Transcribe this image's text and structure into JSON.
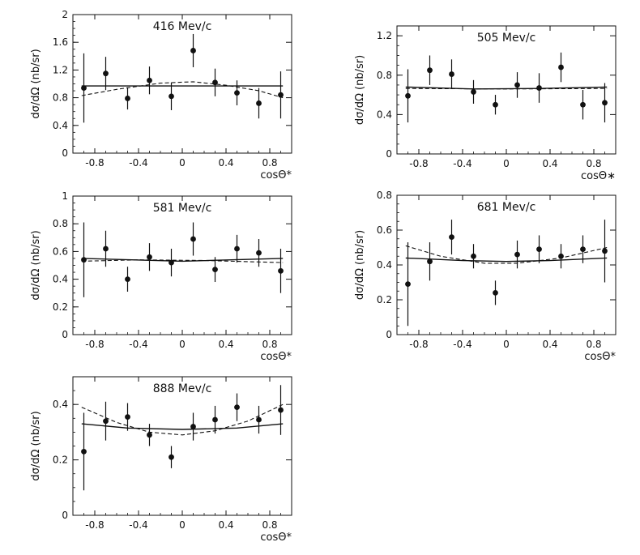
{
  "figure": {
    "ylabel": "dσ/dΩ  (nb/sr)"
  },
  "chart_data": [
    {
      "type": "scatter",
      "title": "416 Mev/c",
      "xlabel": "cosΘ*",
      "ylabel": "dσ/dΩ  (nb/sr)",
      "xlim": [
        -1,
        1
      ],
      "ylim": [
        0,
        2
      ],
      "xticks": [
        -0.8,
        -0.4,
        0,
        0.4,
        0.8
      ],
      "xtick_labels": [
        "-0.8",
        "-0.4",
        "0",
        "0.4",
        "0.8"
      ],
      "yticks": [
        0,
        0.4,
        0.8,
        1.2,
        1.6,
        2
      ],
      "ytick_labels": [
        "0",
        "0.4",
        "0.8",
        "1.2",
        "1.6",
        "2"
      ],
      "points": {
        "x": [
          -0.9,
          -0.7,
          -0.5,
          -0.3,
          -0.1,
          0.1,
          0.3,
          0.5,
          0.7,
          0.9
        ],
        "y": [
          0.94,
          1.15,
          0.79,
          1.05,
          0.82,
          1.48,
          1.02,
          0.87,
          0.72,
          0.84
        ],
        "err": [
          0.5,
          0.24,
          0.16,
          0.2,
          0.2,
          0.24,
          0.2,
          0.18,
          0.22,
          0.34
        ]
      },
      "solid_fit": [
        [
          -0.92,
          0.97
        ],
        [
          0.0,
          0.97
        ],
        [
          0.92,
          0.97
        ]
      ],
      "dashed_fit": [
        [
          -0.92,
          0.83
        ],
        [
          -0.6,
          0.92
        ],
        [
          -0.2,
          1.01
        ],
        [
          0.1,
          1.03
        ],
        [
          0.4,
          0.98
        ],
        [
          0.7,
          0.9
        ],
        [
          0.92,
          0.8
        ]
      ]
    },
    {
      "type": "scatter",
      "title": "505 Mev/c",
      "xlabel": "cosΘ∗",
      "ylabel": "dσ/dΩ  (nb/sr)",
      "xlim": [
        -1,
        1
      ],
      "ylim": [
        0,
        1.3
      ],
      "xticks": [
        -0.8,
        -0.4,
        0,
        0.4,
        0.8
      ],
      "xtick_labels": [
        "-0.8",
        "-0.4",
        "0",
        "0.4",
        "0.8"
      ],
      "yticks": [
        0,
        0.4,
        0.8,
        1.2
      ],
      "ytick_labels": [
        "0",
        "0.4",
        "0.8",
        "1.2"
      ],
      "points": {
        "x": [
          -0.9,
          -0.7,
          -0.5,
          -0.3,
          -0.1,
          0.1,
          0.3,
          0.5,
          0.7,
          0.9
        ],
        "y": [
          0.59,
          0.85,
          0.81,
          0.63,
          0.5,
          0.7,
          0.67,
          0.88,
          0.5,
          0.52
        ],
        "err": [
          0.27,
          0.15,
          0.15,
          0.12,
          0.1,
          0.13,
          0.15,
          0.15,
          0.15,
          0.2
        ]
      },
      "solid_fit": [
        [
          -0.92,
          0.68
        ],
        [
          -0.3,
          0.66
        ],
        [
          0.3,
          0.665
        ],
        [
          0.92,
          0.68
        ]
      ],
      "dashed_fit": [
        [
          -0.92,
          0.665
        ],
        [
          0.0,
          0.66
        ],
        [
          0.92,
          0.665
        ]
      ]
    },
    {
      "type": "scatter",
      "title": "581 Mev/c",
      "xlabel": "cosΘ*",
      "ylabel": "dσ/dΩ  (nb/sr)",
      "xlim": [
        -1,
        1
      ],
      "ylim": [
        0,
        1
      ],
      "xticks": [
        -0.8,
        -0.4,
        0,
        0.4,
        0.8
      ],
      "xtick_labels": [
        "-0.8",
        "-0.4",
        "0",
        "0.4",
        "0.8"
      ],
      "yticks": [
        0,
        0.2,
        0.4,
        0.6,
        0.8,
        1
      ],
      "ytick_labels": [
        "0",
        "0.2",
        "0.4",
        "0.6",
        "0.8",
        "1"
      ],
      "points": {
        "x": [
          -0.9,
          -0.7,
          -0.5,
          -0.3,
          -0.1,
          0.1,
          0.3,
          0.5,
          0.7,
          0.9
        ],
        "y": [
          0.54,
          0.62,
          0.4,
          0.56,
          0.52,
          0.69,
          0.47,
          0.62,
          0.59,
          0.46
        ],
        "err": [
          0.27,
          0.13,
          0.09,
          0.1,
          0.1,
          0.12,
          0.09,
          0.1,
          0.1,
          0.16
        ]
      },
      "solid_fit": [
        [
          -0.92,
          0.55
        ],
        [
          0.0,
          0.53
        ],
        [
          0.92,
          0.55
        ]
      ],
      "dashed_fit": [
        [
          -0.92,
          0.53
        ],
        [
          -0.4,
          0.54
        ],
        [
          0.2,
          0.535
        ],
        [
          0.92,
          0.52
        ]
      ]
    },
    {
      "type": "scatter",
      "title": "681 Mev/c",
      "xlabel": "cosΘ*",
      "ylabel": "dσ/dΩ  (nb/sr)",
      "xlim": [
        -1,
        1
      ],
      "ylim": [
        0,
        0.8
      ],
      "xticks": [
        -0.8,
        -0.4,
        0,
        0.4,
        0.8
      ],
      "xtick_labels": [
        "-0.8",
        "-0.4",
        "0",
        "0.4",
        "0.8"
      ],
      "yticks": [
        0,
        0.2,
        0.4,
        0.6,
        0.8
      ],
      "ytick_labels": [
        "0",
        "0.2",
        "0.4",
        "0.6",
        "0.8"
      ],
      "points": {
        "x": [
          -0.9,
          -0.7,
          -0.5,
          -0.3,
          -0.1,
          0.1,
          0.3,
          0.5,
          0.7,
          0.9
        ],
        "y": [
          0.29,
          0.42,
          0.56,
          0.45,
          0.24,
          0.46,
          0.49,
          0.45,
          0.49,
          0.48
        ],
        "err": [
          0.24,
          0.11,
          0.1,
          0.07,
          0.07,
          0.08,
          0.08,
          0.07,
          0.08,
          0.18
        ]
      },
      "solid_fit": [
        [
          -0.92,
          0.44
        ],
        [
          -0.4,
          0.425
        ],
        [
          0.0,
          0.42
        ],
        [
          0.4,
          0.425
        ],
        [
          0.92,
          0.44
        ]
      ],
      "dashed_fit": [
        [
          -0.92,
          0.51
        ],
        [
          -0.6,
          0.45
        ],
        [
          -0.2,
          0.41
        ],
        [
          0.1,
          0.41
        ],
        [
          0.5,
          0.44
        ],
        [
          0.92,
          0.5
        ]
      ]
    },
    {
      "type": "scatter",
      "title": "888 Mev/c",
      "xlabel": "cosΘ*",
      "ylabel": "dσ/dΩ  (nb/sr)",
      "xlim": [
        -1,
        1
      ],
      "ylim": [
        0,
        0.5
      ],
      "xticks": [
        -0.8,
        -0.4,
        0,
        0.4,
        0.8
      ],
      "xtick_labels": [
        "-0.8",
        "-0.4",
        "0",
        "0.4",
        "0.8"
      ],
      "yticks": [
        0,
        0.2,
        0.4
      ],
      "ytick_labels": [
        "0",
        "0.2",
        "0.4"
      ],
      "points": {
        "x": [
          -0.9,
          -0.7,
          -0.5,
          -0.3,
          -0.1,
          0.1,
          0.3,
          0.5,
          0.7,
          0.9
        ],
        "y": [
          0.23,
          0.34,
          0.355,
          0.29,
          0.21,
          0.32,
          0.345,
          0.39,
          0.345,
          0.38
        ],
        "err": [
          0.14,
          0.07,
          0.05,
          0.04,
          0.04,
          0.05,
          0.05,
          0.05,
          0.05,
          0.09
        ]
      },
      "solid_fit": [
        [
          -0.92,
          0.33
        ],
        [
          -0.5,
          0.315
        ],
        [
          0.0,
          0.31
        ],
        [
          0.5,
          0.315
        ],
        [
          0.92,
          0.33
        ]
      ],
      "dashed_fit": [
        [
          -0.92,
          0.39
        ],
        [
          -0.6,
          0.335
        ],
        [
          -0.3,
          0.3
        ],
        [
          0.0,
          0.29
        ],
        [
          0.3,
          0.305
        ],
        [
          0.6,
          0.34
        ],
        [
          0.92,
          0.4
        ]
      ]
    }
  ]
}
